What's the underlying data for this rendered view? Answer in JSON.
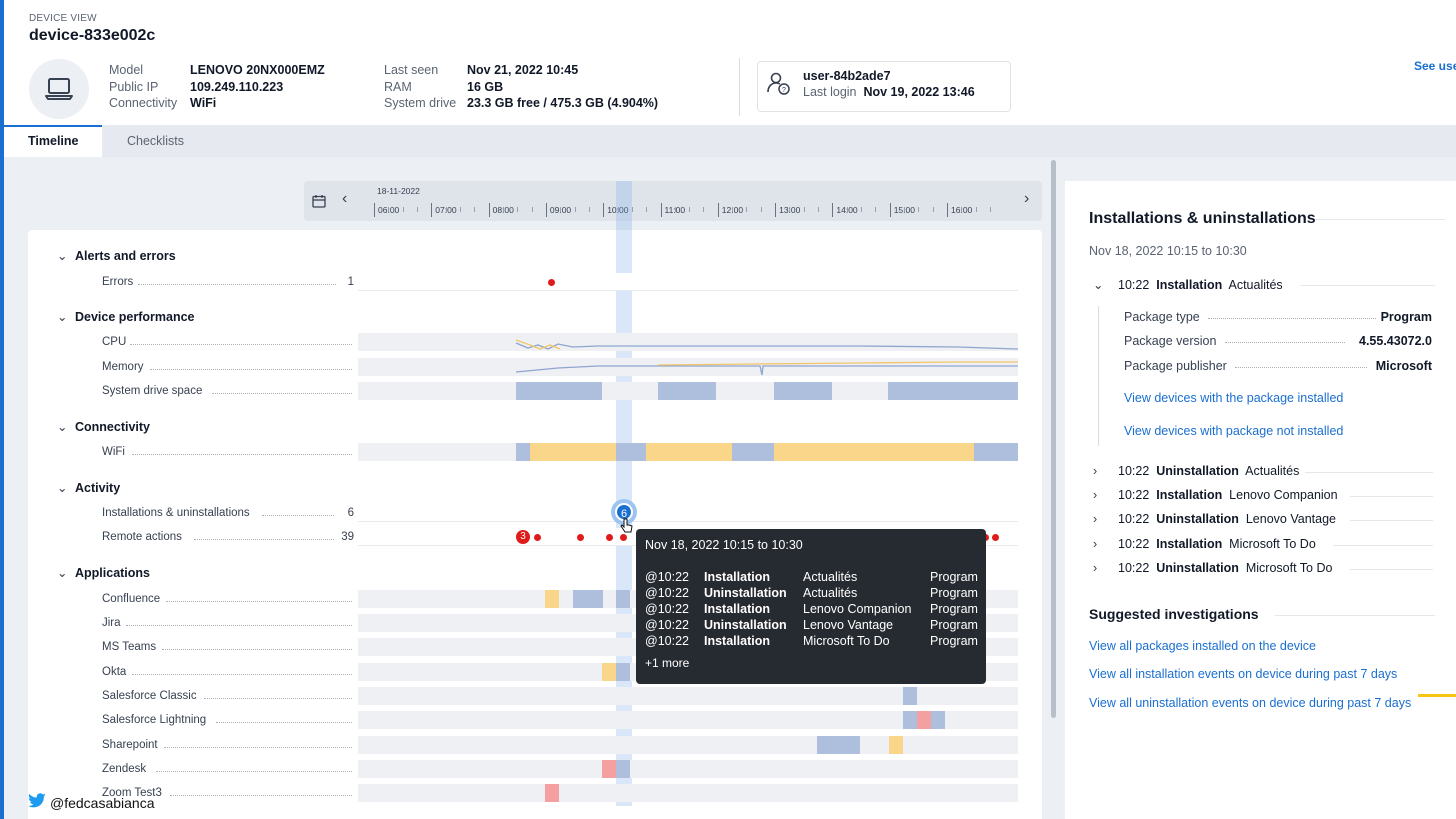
{
  "header": {
    "view_label": "DEVICE VIEW",
    "device_name": "device-833e002c",
    "device_icon": "laptop-icon",
    "props_left": [
      {
        "key": "Model",
        "value": "LENOVO 20NX000EMZ"
      },
      {
        "key": "Public IP",
        "value": "109.249.110.223"
      },
      {
        "key": "Connectivity",
        "value": "WiFi"
      }
    ],
    "props_mid": [
      {
        "key": "Last seen",
        "value": "Nov 21, 2022 10:45"
      },
      {
        "key": "RAM",
        "value": "16 GB"
      },
      {
        "key": "System drive",
        "value": "23.3 GB free / 475.3 GB (4.904%)"
      }
    ],
    "user": {
      "name": "user-84b2ade7",
      "last_login_label": "Last login",
      "last_login_value": "Nov 19, 2022 13:46",
      "icon": "user-icon"
    },
    "see_user_link": "See use"
  },
  "tabs": [
    {
      "label": "Timeline",
      "active": true
    },
    {
      "label": "Checklists",
      "active": false
    }
  ],
  "ruler": {
    "date": "18-11-2022",
    "ticks": [
      "06:00",
      "07:00",
      "08:00",
      "09:00",
      "10:00",
      "11:00",
      "12:00",
      "13:00",
      "14:00",
      "15:00",
      "16:00"
    ]
  },
  "sections": [
    {
      "title": "Alerts and errors",
      "rows": [
        {
          "label": "Errors",
          "count": "1"
        }
      ]
    },
    {
      "title": "Device performance",
      "rows": [
        {
          "label": "CPU"
        },
        {
          "label": "Memory"
        },
        {
          "label": "System drive space"
        }
      ]
    },
    {
      "title": "Connectivity",
      "rows": [
        {
          "label": "WiFi"
        }
      ]
    },
    {
      "title": "Activity",
      "rows": [
        {
          "label": "Installations & uninstallations",
          "count": "6",
          "bubble": "6"
        },
        {
          "label": "Remote actions",
          "count": "39",
          "bubble": "3"
        }
      ]
    },
    {
      "title": "Applications",
      "rows": [
        {
          "label": "Confluence"
        },
        {
          "label": "Jira"
        },
        {
          "label": "MS Teams"
        },
        {
          "label": "Okta"
        },
        {
          "label": "Salesforce Classic"
        },
        {
          "label": "Salesforce Lightning"
        },
        {
          "label": "Sharepoint"
        },
        {
          "label": "Zendesk"
        },
        {
          "label": "Zoom Test3"
        }
      ]
    }
  ],
  "tooltip": {
    "title": "Nov 18, 2022  10:15 to 10:30",
    "rows": [
      {
        "time": "@10:22",
        "type": "Installation",
        "name": "Actualités",
        "kind": "Program"
      },
      {
        "time": "@10:22",
        "type": "Uninstallation",
        "name": "Actualités",
        "kind": "Program"
      },
      {
        "time": "@10:22",
        "type": "Installation",
        "name": "Lenovo Companion",
        "kind": "Program"
      },
      {
        "time": "@10:22",
        "type": "Uninstallation",
        "name": "Lenovo Vantage",
        "kind": "Program"
      },
      {
        "time": "@10:22",
        "type": "Installation",
        "name": "Microsoft To Do",
        "kind": "Program"
      }
    ],
    "more": "+1 more"
  },
  "right_panel": {
    "title": "Installations & uninstallations",
    "range": "Nov 18, 2022 10:15 to 10:30",
    "expanded": {
      "time": "10:22",
      "type": "Installation",
      "name": "Actualités",
      "details": [
        {
          "key": "Package type",
          "value": "Program"
        },
        {
          "key": "Package version",
          "value": "4.55.43072.0"
        },
        {
          "key": "Package publisher",
          "value": "Microsoft"
        }
      ],
      "links": [
        "View devices with the package installed",
        "View devices with package not installed"
      ]
    },
    "events": [
      {
        "time": "10:22",
        "type": "Uninstallation",
        "name": "Actualités"
      },
      {
        "time": "10:22",
        "type": "Installation",
        "name": "Lenovo Companion"
      },
      {
        "time": "10:22",
        "type": "Uninstallation",
        "name": "Lenovo Vantage"
      },
      {
        "time": "10:22",
        "type": "Installation",
        "name": "Microsoft To Do"
      },
      {
        "time": "10:22",
        "type": "Uninstallation",
        "name": "Microsoft To Do"
      }
    ],
    "suggested_title": "Suggested investigations",
    "suggested_links": [
      "View all packages installed on the device",
      "View all installation events on device during past 7 days",
      "View all uninstallation events on device during past 7 days"
    ]
  },
  "watermark": {
    "handle": "@fedcasabianca",
    "icon": "twitter-bird-icon"
  },
  "colors": {
    "accent": "#1a6fd1",
    "segment_blue": "#aebfdd",
    "segment_yellow": "#f9d68a",
    "segment_red": "#f4a0a0",
    "error_dot": "#e01b1b",
    "tooltip_bg": "#262a31"
  }
}
